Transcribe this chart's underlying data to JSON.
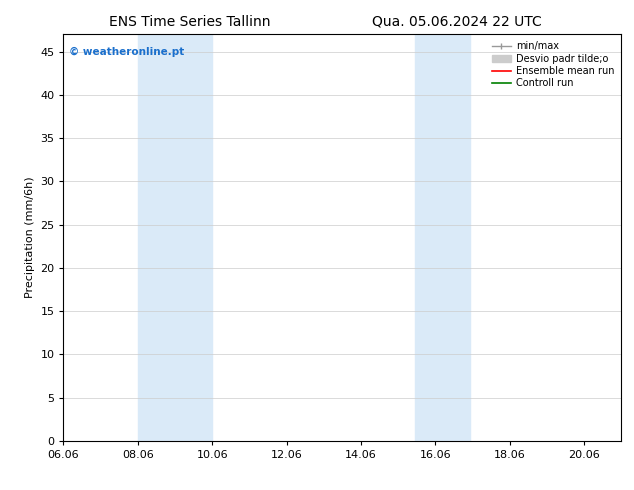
{
  "title_left": "ENS Time Series Tallinn",
  "title_right": "Qua. 05.06.2024 22 UTC",
  "ylabel": "Precipitation (mm/6h)",
  "ylim": [
    0,
    47
  ],
  "yticks": [
    0,
    5,
    10,
    15,
    20,
    25,
    30,
    35,
    40,
    45
  ],
  "xlim_start": 6.06,
  "xlim_end": 21.06,
  "xtick_labels": [
    "06.06",
    "08.06",
    "10.06",
    "12.06",
    "14.06",
    "16.06",
    "18.06",
    "20.06"
  ],
  "xtick_positions": [
    6.06,
    8.06,
    10.06,
    12.06,
    14.06,
    16.06,
    18.06,
    20.06
  ],
  "shaded_regions": [
    {
      "x_start": 8.06,
      "x_end": 10.06
    },
    {
      "x_start": 15.5,
      "x_end": 17.0
    }
  ],
  "shaded_color": "#daeaf8",
  "watermark_text": "© weatheronline.pt",
  "watermark_color": "#1a6fcc",
  "bg_color": "#ffffff",
  "grid_color": "#cccccc",
  "title_fontsize": 10,
  "tick_fontsize": 8,
  "ylabel_fontsize": 8,
  "legend_gray_line": "#999999",
  "legend_gray_fill": "#cccccc",
  "legend_red": "#ff0000",
  "legend_green": "#008000"
}
